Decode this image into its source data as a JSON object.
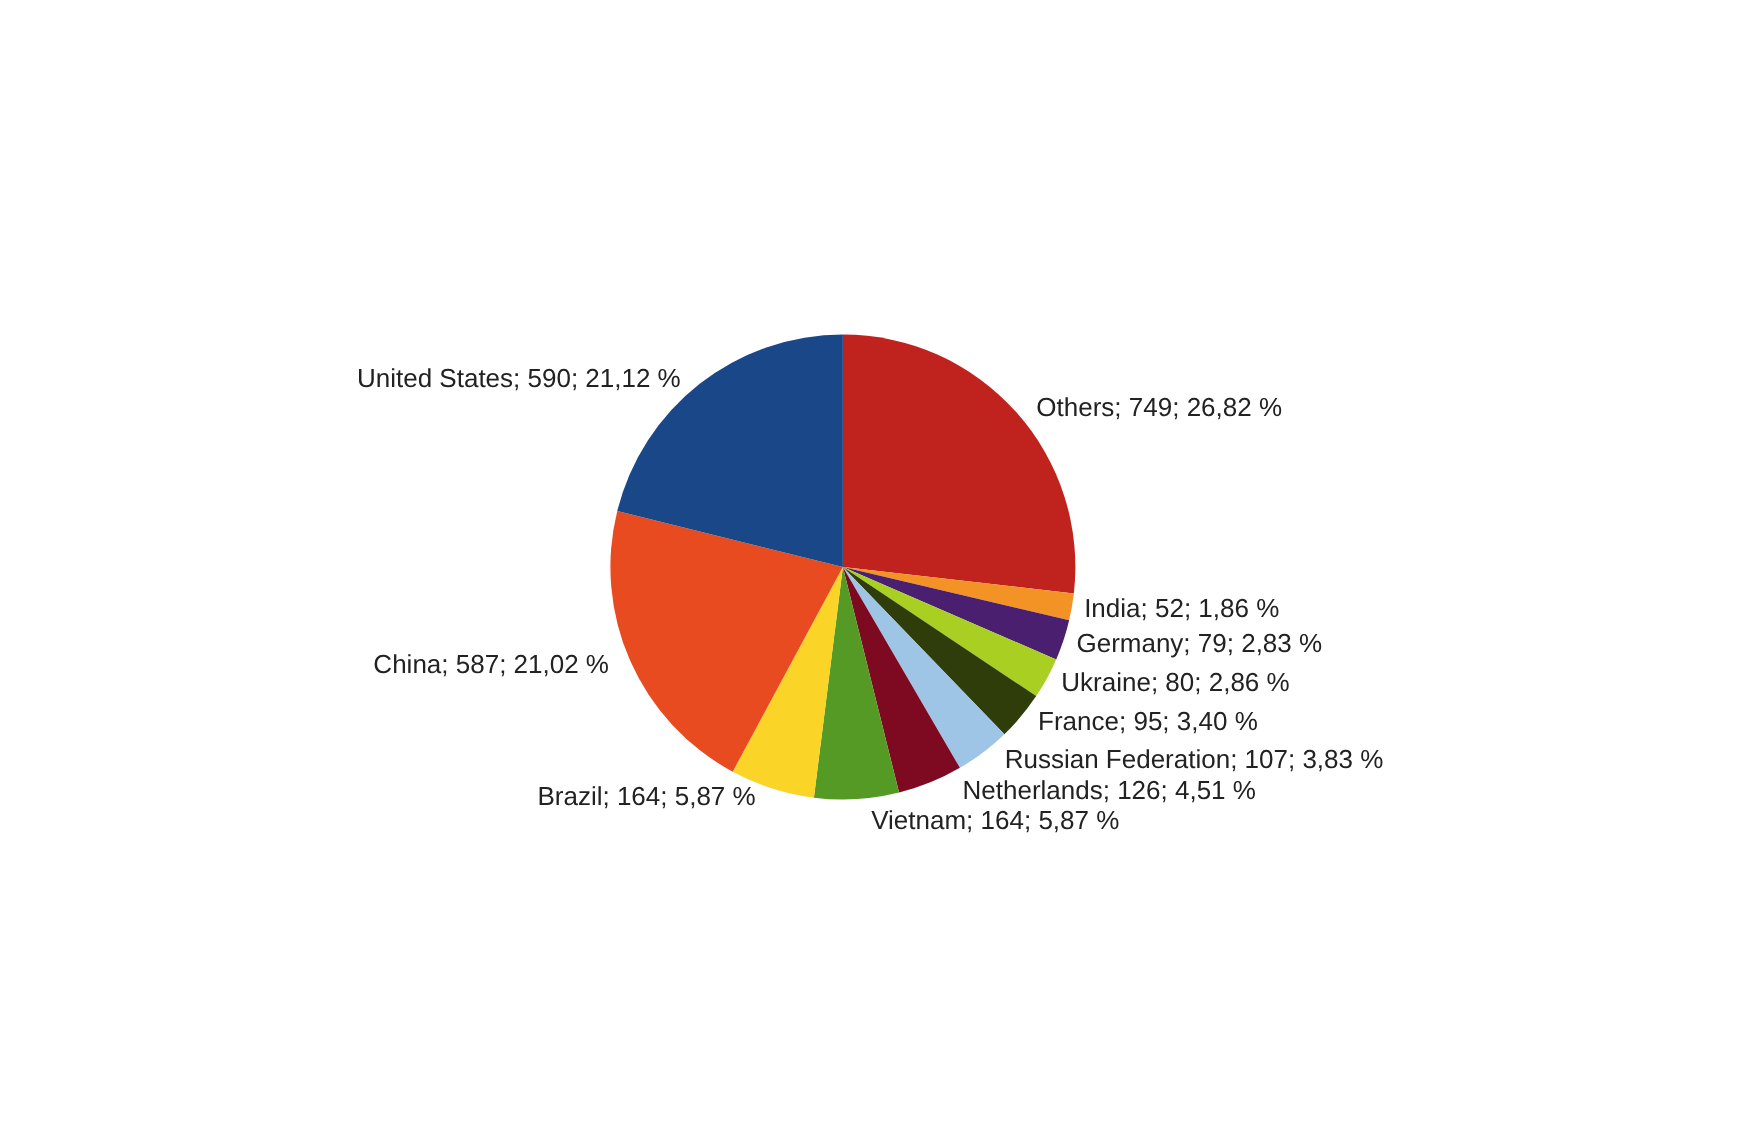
{
  "chart_data": {
    "type": "pie",
    "categories": [
      "Others",
      "India",
      "Germany",
      "Ukraine",
      "France",
      "Russian Federation",
      "Netherlands",
      "Vietnam",
      "Brazil",
      "China",
      "United States"
    ],
    "values": [
      749,
      52,
      79,
      80,
      95,
      107,
      126,
      164,
      164,
      587,
      590
    ],
    "value_labels": [
      "749; 26,82 %",
      "52; 1,86 %",
      "79; 2,83 %",
      "80; 2,86 %",
      "95; 3,40 %",
      "107; 3,83 %",
      "126; 4,51 %",
      "164; 5,87 %",
      "164; 5,87 %",
      "587; 21,02 %",
      "590; 21,12 %"
    ],
    "colors": [
      "#c0231e",
      "#f39325",
      "#4b1f6f",
      "#aacf23",
      "#2f3d0a",
      "#9ec4e6",
      "#7e0a21",
      "#559a24",
      "#fad427",
      "#e84b1f",
      "#1a4788"
    ],
    "legend": false
  }
}
